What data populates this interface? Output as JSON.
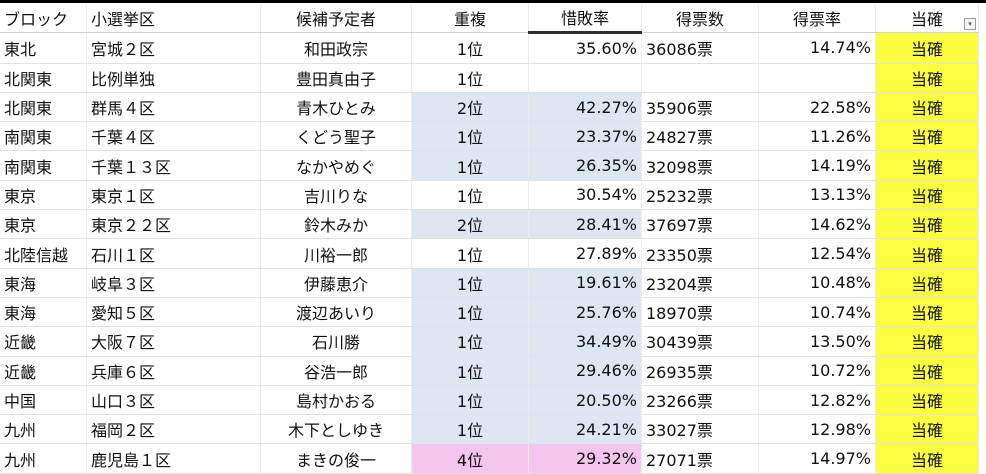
{
  "headers": {
    "block": "ブロック",
    "district": "小選挙区",
    "candidate": "候補予定者",
    "duplicate": "重複",
    "loss_ratio": "惜敗率",
    "votes": "得票数",
    "vote_rate": "得票率",
    "win": "当確"
  },
  "icons": {
    "filter": "filter-dropdown-icon"
  },
  "colors": {
    "duplicate_highlight": "#dde6f3",
    "duplicate_highlight_4th": "#f4c6ee",
    "win_highlight": "#fbff3f"
  },
  "rows": [
    {
      "block": "東北",
      "district": "宮城２区",
      "candidate": "和田政宗",
      "duplicate": "1位",
      "loss_ratio": "35.60%",
      "votes": "36086票",
      "vote_rate": "14.74%",
      "win": "当確",
      "hl": ""
    },
    {
      "block": "北関東",
      "district": "比例単独",
      "candidate": "豊田真由子",
      "duplicate": "1位",
      "loss_ratio": "",
      "votes": "",
      "vote_rate": "",
      "win": "当確",
      "hl": ""
    },
    {
      "block": "北関東",
      "district": "群馬４区",
      "candidate": "青木ひとみ",
      "duplicate": "2位",
      "loss_ratio": "42.27%",
      "votes": "35906票",
      "vote_rate": "22.58%",
      "win": "当確",
      "hl": "blue"
    },
    {
      "block": "南関東",
      "district": "千葉４区",
      "candidate": "くどう聖子",
      "duplicate": "1位",
      "loss_ratio": "23.37%",
      "votes": "24827票",
      "vote_rate": "11.26%",
      "win": "当確",
      "hl": "blue"
    },
    {
      "block": "南関東",
      "district": "千葉１３区",
      "candidate": "なかやめぐ",
      "duplicate": "1位",
      "loss_ratio": "26.35%",
      "votes": "32098票",
      "vote_rate": "14.19%",
      "win": "当確",
      "hl": "blue"
    },
    {
      "block": "東京",
      "district": "東京１区",
      "candidate": "吉川りな",
      "duplicate": "1位",
      "loss_ratio": "30.54%",
      "votes": "25232票",
      "vote_rate": "13.13%",
      "win": "当確",
      "hl": ""
    },
    {
      "block": "東京",
      "district": "東京２２区",
      "candidate": "鈴木みか",
      "duplicate": "2位",
      "loss_ratio": "28.41%",
      "votes": "37697票",
      "vote_rate": "14.62%",
      "win": "当確",
      "hl": "blue"
    },
    {
      "block": "北陸信越",
      "district": "石川１区",
      "candidate": "川裕一郎",
      "duplicate": "1位",
      "loss_ratio": "27.89%",
      "votes": "23350票",
      "vote_rate": "12.54%",
      "win": "当確",
      "hl": ""
    },
    {
      "block": "東海",
      "district": "岐阜３区",
      "candidate": "伊藤恵介",
      "duplicate": "1位",
      "loss_ratio": "19.61%",
      "votes": "23204票",
      "vote_rate": "10.48%",
      "win": "当確",
      "hl": "blue"
    },
    {
      "block": "東海",
      "district": "愛知５区",
      "candidate": "渡辺あいり",
      "duplicate": "1位",
      "loss_ratio": "25.76%",
      "votes": "18970票",
      "vote_rate": "10.74%",
      "win": "当確",
      "hl": "blue"
    },
    {
      "block": "近畿",
      "district": "大阪７区",
      "candidate": "石川勝",
      "duplicate": "1位",
      "loss_ratio": "34.49%",
      "votes": "30439票",
      "vote_rate": "13.50%",
      "win": "当確",
      "hl": "blue"
    },
    {
      "block": "近畿",
      "district": "兵庫６区",
      "candidate": "谷浩一郎",
      "duplicate": "1位",
      "loss_ratio": "29.46%",
      "votes": "26935票",
      "vote_rate": "10.72%",
      "win": "当確",
      "hl": "blue"
    },
    {
      "block": "中国",
      "district": "山口３区",
      "candidate": "島村かおる",
      "duplicate": "1位",
      "loss_ratio": "20.50%",
      "votes": "23266票",
      "vote_rate": "12.82%",
      "win": "当確",
      "hl": "blue"
    },
    {
      "block": "九州",
      "district": "福岡２区",
      "candidate": "木下としゆき",
      "duplicate": "1位",
      "loss_ratio": "24.21%",
      "votes": "33027票",
      "vote_rate": "12.98%",
      "win": "当確",
      "hl": "blue"
    },
    {
      "block": "九州",
      "district": "鹿児島１区",
      "candidate": "まきの俊一",
      "duplicate": "4位",
      "loss_ratio": "29.32%",
      "votes": "27071票",
      "vote_rate": "14.97%",
      "win": "当確",
      "hl": "pink"
    }
  ]
}
